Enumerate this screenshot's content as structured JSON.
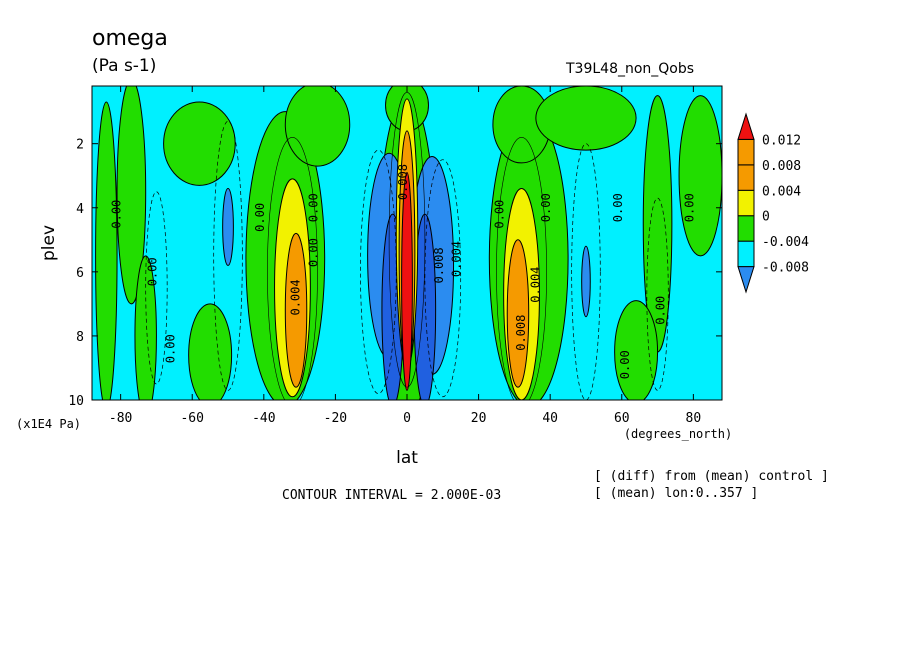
{
  "header": {
    "title": "omega",
    "units": "(Pa s-1)",
    "run_name": "T39L48_non_Qobs"
  },
  "footer": {
    "contour_interval": "CONTOUR INTERVAL = 2.000E-03",
    "note_diff": "[ (diff) from (mean) control ]",
    "note_mean": "[ (mean) lon:0..357 ]"
  },
  "colors": {
    "red": "#ee1111",
    "orange": "#f59a00",
    "yellow": "#f2f200",
    "green": "#22dd00",
    "cyan": "#00f0ff",
    "blue": "#2b8cf0",
    "darkblue": "#2060e0"
  },
  "chart_data": {
    "type": "contour",
    "title": "omega",
    "xlabel": "lat",
    "xunit": "(degrees_north)",
    "ylabel": "plev",
    "yunit": "(x1E4 Pa)",
    "xlim": [
      -88,
      88
    ],
    "ylim": [
      10,
      0.2
    ],
    "x_ticks": [
      -80,
      -60,
      -40,
      -20,
      0,
      20,
      40,
      60,
      80
    ],
    "y_ticks": [
      2,
      4,
      6,
      8,
      10
    ],
    "colorbar": {
      "levels": [
        -0.008,
        -0.004,
        0,
        0.004,
        0.008,
        0.012
      ],
      "labels": [
        "-0.008",
        "-0.004",
        "0",
        "0.004",
        "0.008",
        "0.012"
      ]
    },
    "contour_labels": [
      {
        "text": "0.00",
        "lat": -80,
        "plev": 4.2
      },
      {
        "text": "0.00",
        "lat": -70,
        "plev": 6.0
      },
      {
        "text": "0.00",
        "lat": -65,
        "plev": 8.4
      },
      {
        "text": "0.00",
        "lat": -40,
        "plev": 4.3
      },
      {
        "text": "0.004",
        "lat": -30,
        "plev": 6.8
      },
      {
        "text": "0.00",
        "lat": -25,
        "plev": 5.4
      },
      {
        "text": "0.00",
        "lat": -25,
        "plev": 4.0
      },
      {
        "text": "0.008",
        "lat": 0,
        "plev": 3.2
      },
      {
        "text": "0.008",
        "lat": 10,
        "plev": 5.8
      },
      {
        "text": "0.004",
        "lat": 15,
        "plev": 5.6
      },
      {
        "text": "0.00",
        "lat": 27,
        "plev": 4.2
      },
      {
        "text": "0.00",
        "lat": 40,
        "plev": 4.0
      },
      {
        "text": "0.004",
        "lat": 37,
        "plev": 6.4
      },
      {
        "text": "0.008",
        "lat": 33,
        "plev": 7.9
      },
      {
        "text": "0.00",
        "lat": 60,
        "plev": 4.0
      },
      {
        "text": "0.00",
        "lat": 72,
        "plev": 7.2
      },
      {
        "text": "0.00",
        "lat": 80,
        "plev": 4.0
      },
      {
        "text": "0.00",
        "lat": 62,
        "plev": 8.9
      }
    ]
  }
}
